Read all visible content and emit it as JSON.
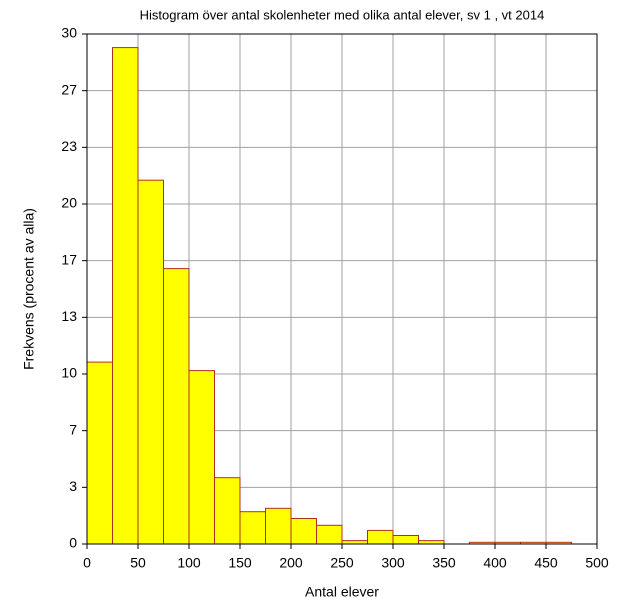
{
  "chart_data": {
    "type": "histogram",
    "title": "Histogram över antal skolenheter med olika antal elever, sv 1 , vt 2014",
    "xlabel": "Antal elever",
    "ylabel": "Frekvens (procent av alla)",
    "bins": [
      0,
      25,
      50,
      75,
      100,
      125,
      150,
      175,
      200,
      225,
      250,
      275,
      300,
      325,
      350,
      375,
      400,
      425,
      450,
      475
    ],
    "values": [
      10.7,
      29.2,
      21.4,
      16.2,
      10.2,
      3.9,
      1.9,
      2.1,
      1.5,
      1.1,
      0.2,
      0.8,
      0.5,
      0.2,
      0,
      0.1,
      0.1,
      0.1,
      0.1
    ],
    "color": "#ffff00",
    "edgecolor": "#b03020",
    "xlim": [
      0,
      500
    ],
    "xticks": [
      0,
      50,
      100,
      150,
      200,
      250,
      300,
      350,
      400,
      450,
      500
    ],
    "ylim": [
      0,
      30
    ],
    "yticks": [
      0,
      {
        "value": 3.3333,
        "label": "3"
      },
      {
        "value": 6.6667,
        "label": "7"
      },
      10,
      {
        "value": 13.3333,
        "label": "13"
      },
      {
        "value": 16.6667,
        "label": "17"
      },
      20,
      {
        "value": 23.3333,
        "label": "23"
      },
      {
        "value": 26.6667,
        "label": "27"
      },
      30
    ],
    "grid": true
  }
}
